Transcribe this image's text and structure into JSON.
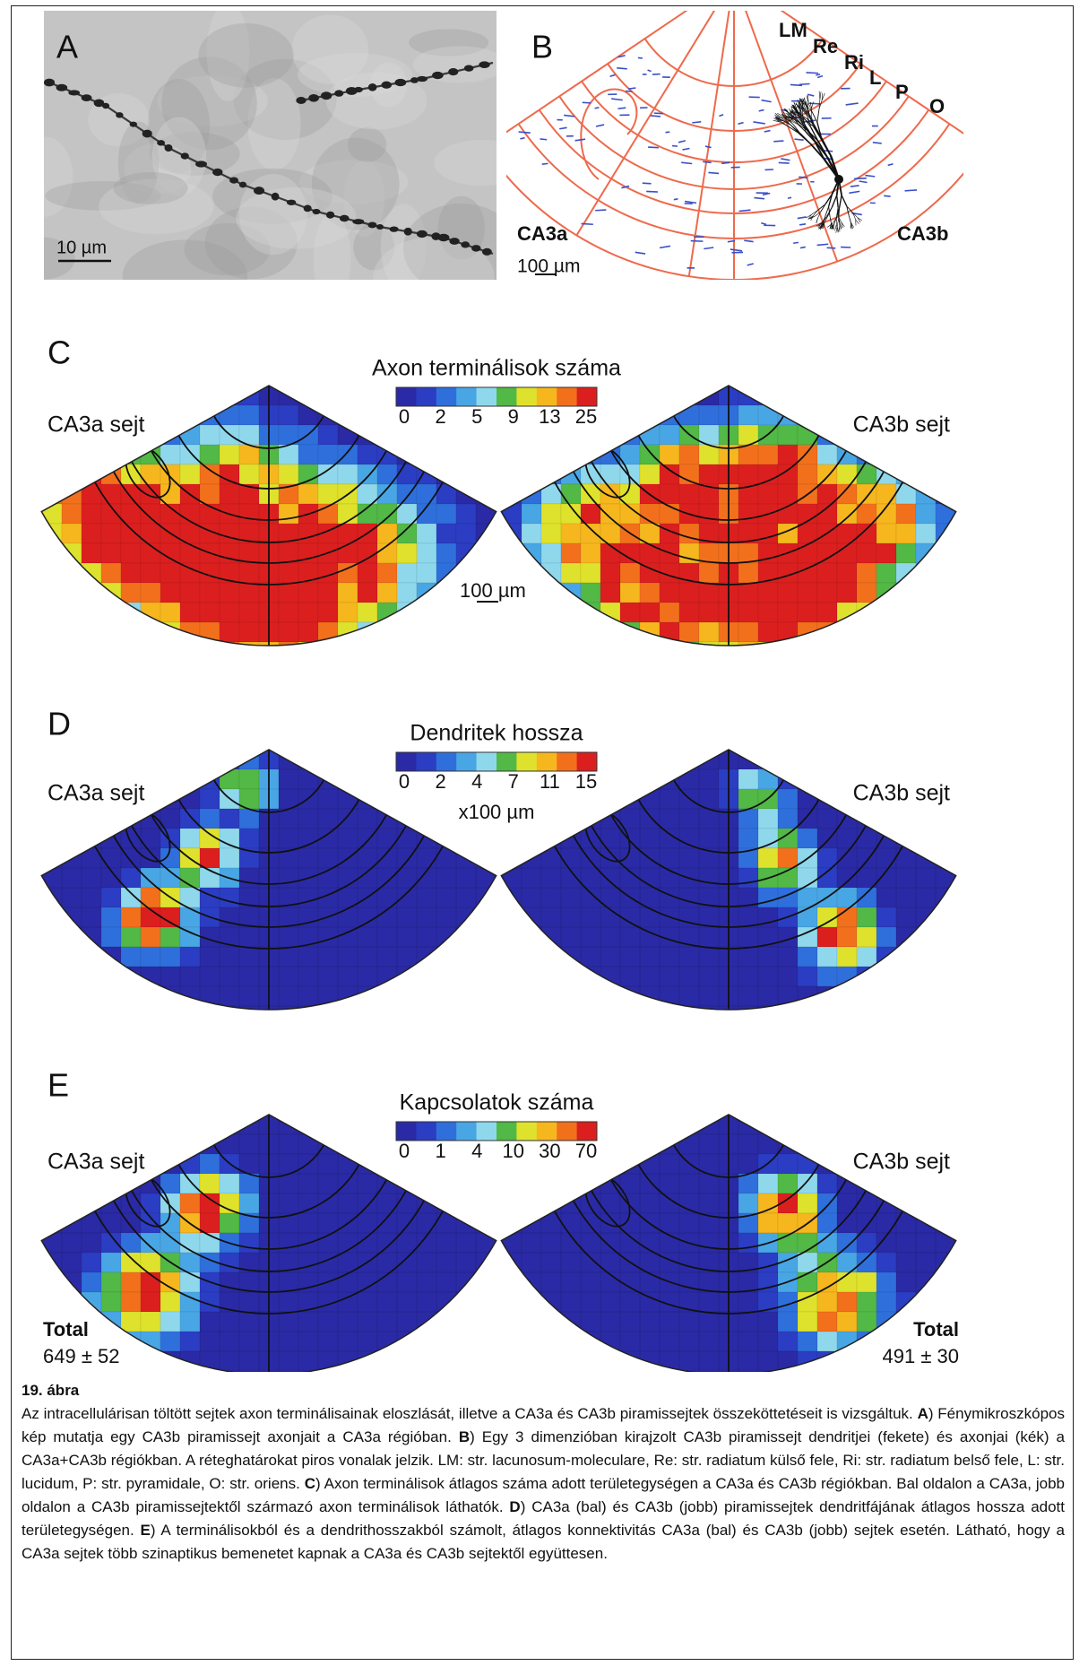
{
  "panel_a": {
    "label": "A",
    "scale_bar": "10 µm"
  },
  "panel_b": {
    "label": "B",
    "layers": [
      "LM",
      "Re",
      "Ri",
      "L",
      "P",
      "O"
    ],
    "region_left": "CA3a",
    "region_right": "CA3b",
    "scale_bar": "100 µm"
  },
  "panel_c": {
    "label": "C",
    "colorbar_title": "Axon terminálisok száma",
    "colorbar_ticks": [
      0,
      2,
      5,
      9,
      13,
      25
    ],
    "left_label": "CA3a sejt",
    "right_label": "CA3b sejt",
    "scale_bar": "100 µm"
  },
  "panel_d": {
    "label": "D",
    "colorbar_title": "Dendritek hossza",
    "colorbar_ticks": [
      0,
      2,
      4,
      7,
      11,
      15
    ],
    "colorbar_unit": "x100 µm",
    "left_label": "CA3a sejt",
    "right_label": "CA3b sejt"
  },
  "panel_e": {
    "label": "E",
    "colorbar_title": "Kapcsolatok száma",
    "colorbar_ticks": [
      0,
      1,
      4,
      10,
      30,
      70
    ],
    "left_label": "CA3a sejt",
    "right_label": "CA3b sejt",
    "left_total_label": "Total",
    "left_total": "649 ± 52",
    "right_total_label": "Total",
    "right_total": "491 ± 30"
  },
  "caption": {
    "title": "19. ábra",
    "segments": [
      "Az intracellulárisan töltött sejtek axon terminálisainak eloszlását, illetve a CA3a és CA3b piramissejtek összeköttetéseit is vizsgáltuk. ",
      "A",
      ") Fénymikroszkópos kép mutatja egy CA3b piramissejt axonjait a CA3a régióban. ",
      "B",
      ") Egy 3 dimenzióban kirajzolt CA3b piramissejt dendritjei (fekete) és axonjai (kék) a CA3a+CA3b régiókban. A réteghatárokat piros vonalak jelzik. LM: str. lacunosum-moleculare, Re: str. radiatum külső fele, Ri: str. radiatum belső fele, L: str. lucidum, P: str. pyramidale, O: str. oriens. ",
      "C",
      ") Axon terminálisok átlagos száma adott területegységen a CA3a és CA3b régiókban. Bal oldalon a CA3a, jobb oldalon a CA3b piramissejtektől származó axon terminálisok láthatók. ",
      "D",
      ") CA3a (bal) és CA3b (jobb) piramissejtek dendritfájának átlagos hossza adott területegységen. ",
      "E",
      ") A terminálisokból és a dendrithosszakból számolt, átlagos konnektivitás CA3a (bal) és CA3b (jobb) sejtek esetén. Látható, hogy a CA3a sejtek több szinaptikus bemenetet kapnak a CA3a és CA3b sejtektől együttesen."
    ]
  }
}
